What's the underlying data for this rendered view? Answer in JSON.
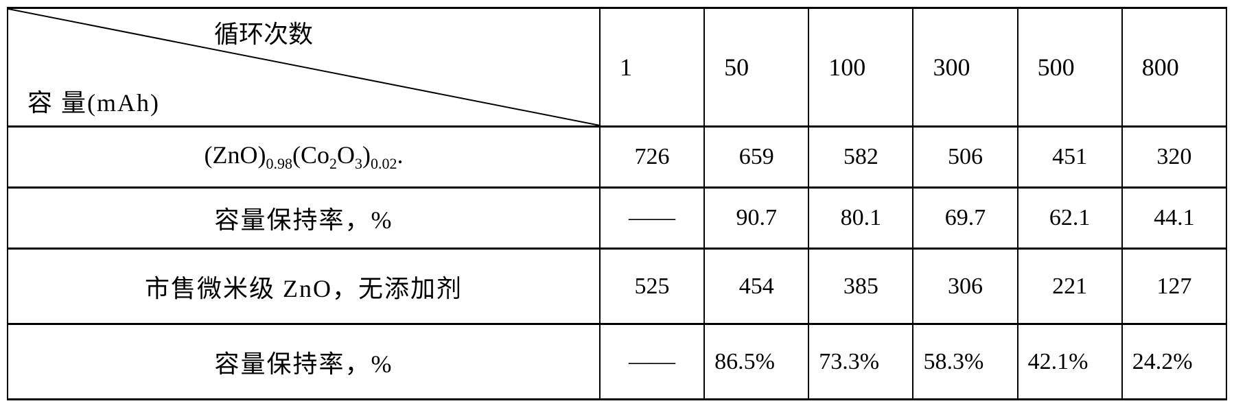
{
  "header": {
    "top_label": "循环次数",
    "bottom_label": "容 量(mAh)",
    "cycles": [
      "1",
      "50",
      "100",
      "300",
      "500",
      "800"
    ]
  },
  "rows": [
    {
      "label_html": "(ZnO)<span class=\"sub\">0.98</span>(Co<span class=\"sub\">2</span>O<span class=\"sub\">3</span>)<span class=\"sub\">0.02</span>.",
      "values": [
        "726",
        "659",
        "582",
        "506",
        "451",
        "320"
      ],
      "tall": false
    },
    {
      "label_html": "容量保持率，%",
      "values": [
        "——",
        "90.7",
        "80.1",
        "69.7",
        "62.1",
        "44.1"
      ],
      "tall": false,
      "cn": true
    },
    {
      "label_html": "市售微米级 ZnO，无添加剂",
      "values": [
        "525",
        "454",
        "385",
        "306",
        "221",
        "127"
      ],
      "tall": true,
      "cn": true
    },
    {
      "label_html": "容量保持率，%",
      "values": [
        "——",
        "86.5%",
        "73.3%",
        "58.3%",
        "42.1%",
        "24.2%"
      ],
      "tall": true,
      "cn": true,
      "pcell": true
    }
  ],
  "style": {
    "border_color": "#000000",
    "background": "#ffffff",
    "font_size_body": 34,
    "font_size_header": 36
  }
}
